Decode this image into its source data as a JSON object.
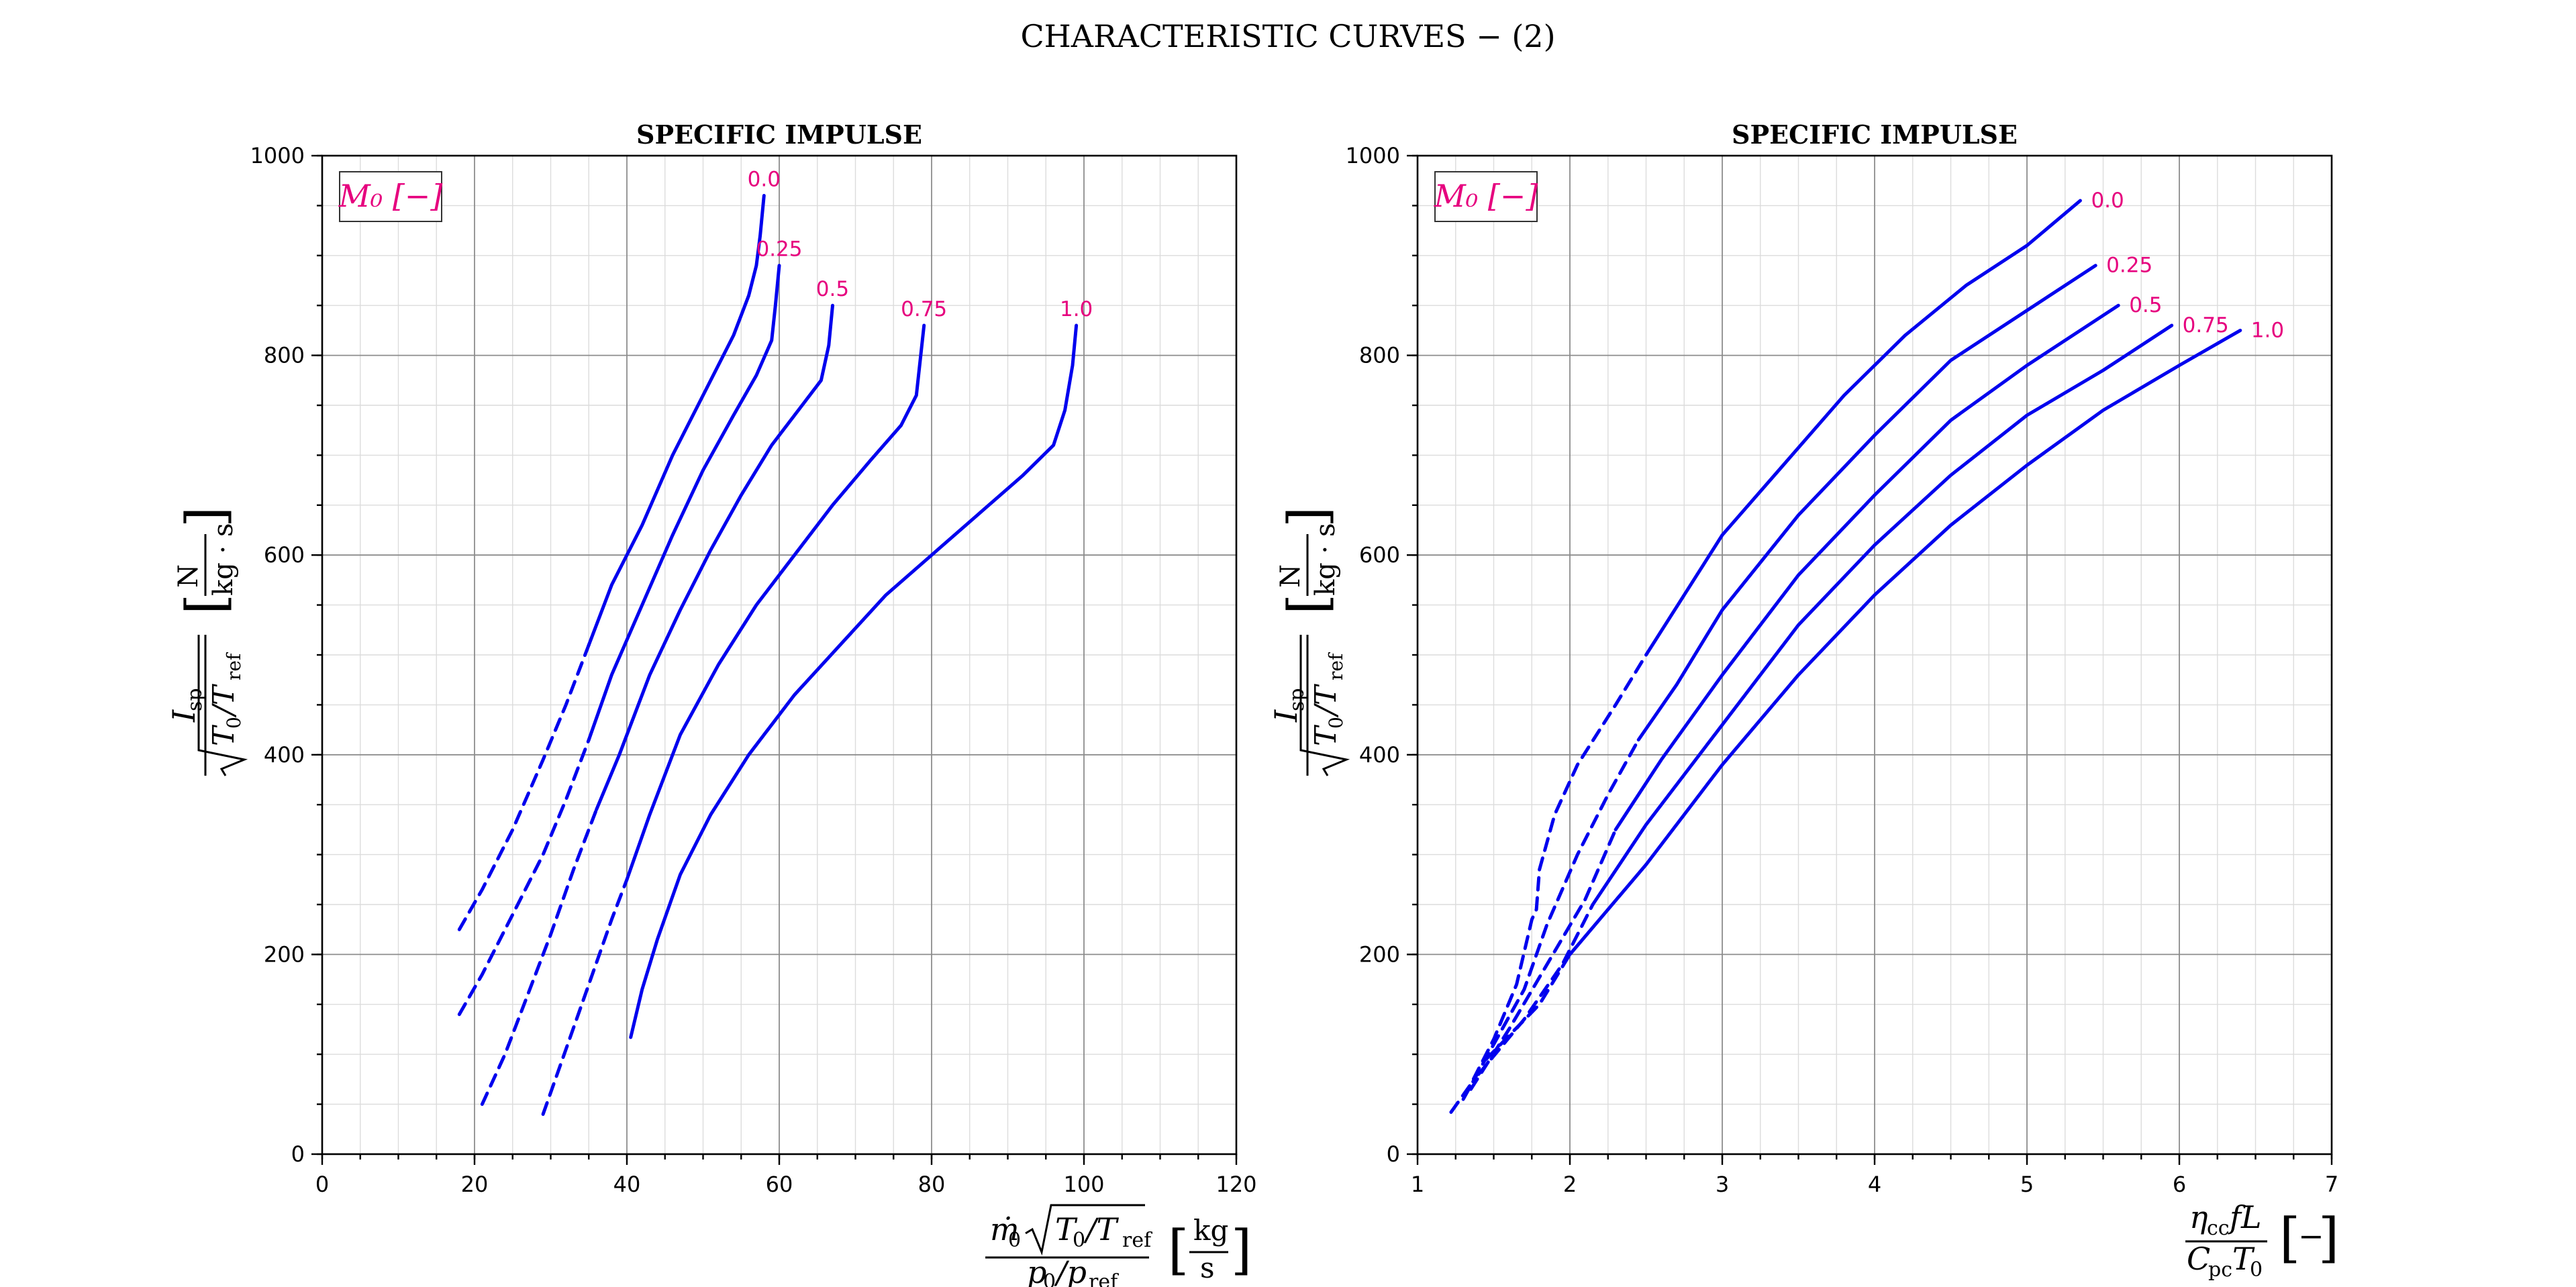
{
  "figure": {
    "title": "CHARACTERISTIC CURVES  − (2)"
  },
  "chart_data": [
    {
      "type": "line",
      "title": "SPECIFIC IMPULSE",
      "xlabel": "ṁ₀√(T₀/T_ref) / (p₀/p_ref)  [kg/s]",
      "ylabel": "I_sp / √(T₀/T_ref)  [N/(kg·s)]",
      "xlim": [
        0,
        120
      ],
      "ylim": [
        0,
        1000
      ],
      "x_ticks": [
        0,
        20,
        40,
        60,
        80,
        100,
        120
      ],
      "y_ticks": [
        0,
        200,
        400,
        600,
        800,
        1000
      ],
      "x_minor_step": 5,
      "y_minor_step": 50,
      "grid": true,
      "legend": {
        "text": "M₀ [−]",
        "placement": "top-left"
      },
      "line_color": "#0000ee",
      "label_color": "#e6007e",
      "series": [
        {
          "name": "0.0",
          "dashed": [
            [
              18,
              225
            ],
            [
              21,
              265
            ],
            [
              25,
              325
            ],
            [
              29,
              395
            ],
            [
              32,
              450
            ],
            [
              35,
              510
            ]
          ],
          "solid": [
            [
              35,
              510
            ],
            [
              38,
              570
            ],
            [
              42,
              630
            ],
            [
              46,
              700
            ],
            [
              50,
              760
            ],
            [
              54,
              820
            ],
            [
              56,
              860
            ],
            [
              57,
              890
            ],
            [
              57.5,
              920
            ],
            [
              58,
              960
            ]
          ]
        },
        {
          "name": "0.25",
          "dashed": [
            [
              18,
              140
            ],
            [
              21,
              180
            ],
            [
              25,
              240
            ],
            [
              29,
              300
            ],
            [
              32,
              355
            ],
            [
              35,
              415
            ]
          ],
          "solid": [
            [
              35,
              415
            ],
            [
              38,
              480
            ],
            [
              42,
              550
            ],
            [
              46,
              620
            ],
            [
              50,
              685
            ],
            [
              54,
              740
            ],
            [
              57,
              780
            ],
            [
              59,
              815
            ],
            [
              59.5,
              850
            ],
            [
              60,
              890
            ]
          ]
        },
        {
          "name": "0.5",
          "dashed": [
            [
              21,
              50
            ],
            [
              24,
              100
            ],
            [
              27,
              160
            ],
            [
              30,
              220
            ],
            [
              33,
              285
            ],
            [
              36,
              345
            ]
          ],
          "solid": [
            [
              36,
              345
            ],
            [
              39,
              400
            ],
            [
              43,
              480
            ],
            [
              47,
              545
            ],
            [
              51,
              605
            ],
            [
              55,
              660
            ],
            [
              59,
              710
            ],
            [
              63,
              750
            ],
            [
              65.5,
              775
            ],
            [
              66.5,
              810
            ],
            [
              67,
              850
            ]
          ]
        },
        {
          "name": "0.75",
          "dashed": [
            [
              29,
              40
            ],
            [
              32,
              105
            ],
            [
              35,
              170
            ],
            [
              38,
              235
            ],
            [
              40,
              275
            ]
          ],
          "solid": [
            [
              40,
              275
            ],
            [
              43,
              340
            ],
            [
              47,
              420
            ],
            [
              52,
              490
            ],
            [
              57,
              550
            ],
            [
              62,
              600
            ],
            [
              67,
              650
            ],
            [
              72,
              695
            ],
            [
              76,
              730
            ],
            [
              78,
              760
            ],
            [
              78.5,
              795
            ],
            [
              79,
              830
            ]
          ]
        },
        {
          "name": "1.0",
          "dashed": [],
          "solid": [
            [
              40.5,
              117
            ],
            [
              42,
              165
            ],
            [
              44,
              215
            ],
            [
              47,
              280
            ],
            [
              51,
              340
            ],
            [
              56,
              400
            ],
            [
              62,
              460
            ],
            [
              68,
              510
            ],
            [
              74,
              560
            ],
            [
              80,
              600
            ],
            [
              86,
              640
            ],
            [
              92,
              680
            ],
            [
              96,
              710
            ],
            [
              97.5,
              745
            ],
            [
              98.5,
              790
            ],
            [
              99,
              830
            ]
          ]
        }
      ]
    },
    {
      "type": "line",
      "title": "SPECIFIC IMPULSE",
      "xlabel": "η_cc f L / (C_pc T₀)  [−]",
      "ylabel": "I_sp / √(T₀/T_ref)  [N/(kg·s)]",
      "xlim": [
        1,
        7
      ],
      "ylim": [
        0,
        1000
      ],
      "x_ticks": [
        1,
        2,
        3,
        4,
        5,
        6,
        7
      ],
      "y_ticks": [
        0,
        200,
        400,
        600,
        800,
        1000
      ],
      "x_minor_step": 0.25,
      "y_minor_step": 50,
      "grid": true,
      "legend": {
        "text": "M₀ [−]",
        "placement": "top-left"
      },
      "line_color": "#0000ee",
      "label_color": "#e6007e",
      "series": [
        {
          "name": "0.0",
          "dashed": [
            [
              1.22,
              42
            ],
            [
              1.35,
              70
            ],
            [
              1.5,
              115
            ],
            [
              1.65,
              170
            ],
            [
              1.75,
              235
            ],
            [
              1.78,
              245
            ],
            [
              1.8,
              285
            ],
            [
              1.9,
              340
            ],
            [
              2.05,
              390
            ],
            [
              2.3,
              450
            ],
            [
              2.5,
              500
            ]
          ],
          "solid": [
            [
              2.5,
              500
            ],
            [
              2.75,
              560
            ],
            [
              3.0,
              620
            ],
            [
              3.4,
              690
            ],
            [
              3.8,
              760
            ],
            [
              4.2,
              820
            ],
            [
              4.6,
              870
            ],
            [
              5.0,
              910
            ],
            [
              5.35,
              955
            ]
          ]
        },
        {
          "name": "0.25",
          "dashed": [
            [
              1.3,
              55
            ],
            [
              1.5,
              110
            ],
            [
              1.7,
              165
            ],
            [
              1.85,
              230
            ],
            [
              2.05,
              300
            ],
            [
              2.25,
              360
            ],
            [
              2.45,
              415
            ]
          ],
          "solid": [
            [
              2.45,
              415
            ],
            [
              2.7,
              470
            ],
            [
              3.0,
              545
            ],
            [
              3.5,
              640
            ],
            [
              4.0,
              720
            ],
            [
              4.5,
              795
            ],
            [
              5.0,
              845
            ],
            [
              5.45,
              890
            ]
          ]
        },
        {
          "name": "0.5",
          "dashed": [
            [
              1.35,
              65
            ],
            [
              1.6,
              125
            ],
            [
              1.85,
              190
            ],
            [
              2.1,
              255
            ],
            [
              2.3,
              325
            ]
          ],
          "solid": [
            [
              2.3,
              325
            ],
            [
              2.6,
              395
            ],
            [
              3.0,
              480
            ],
            [
              3.5,
              580
            ],
            [
              4.0,
              660
            ],
            [
              4.5,
              735
            ],
            [
              5.0,
              790
            ],
            [
              5.6,
              850
            ]
          ]
        },
        {
          "name": "0.75",
          "dashed": [
            [
              1.4,
              80
            ],
            [
              1.7,
              135
            ],
            [
              1.95,
              190
            ],
            [
              2.15,
              250
            ]
          ],
          "solid": [
            [
              2.15,
              250
            ],
            [
              2.5,
              330
            ],
            [
              3.0,
              430
            ],
            [
              3.5,
              530
            ],
            [
              4.0,
              610
            ],
            [
              4.5,
              680
            ],
            [
              5.0,
              740
            ],
            [
              5.5,
              785
            ],
            [
              5.95,
              830
            ]
          ]
        },
        {
          "name": "1.0",
          "dashed": [
            [
              1.45,
              95
            ],
            [
              1.8,
              150
            ],
            [
              2.0,
              200
            ]
          ],
          "solid": [
            [
              2.0,
              200
            ],
            [
              2.5,
              290
            ],
            [
              3.0,
              390
            ],
            [
              3.5,
              480
            ],
            [
              4.0,
              560
            ],
            [
              4.5,
              630
            ],
            [
              5.0,
              690
            ],
            [
              5.5,
              745
            ],
            [
              6.0,
              790
            ],
            [
              6.4,
              825
            ]
          ]
        }
      ]
    }
  ]
}
